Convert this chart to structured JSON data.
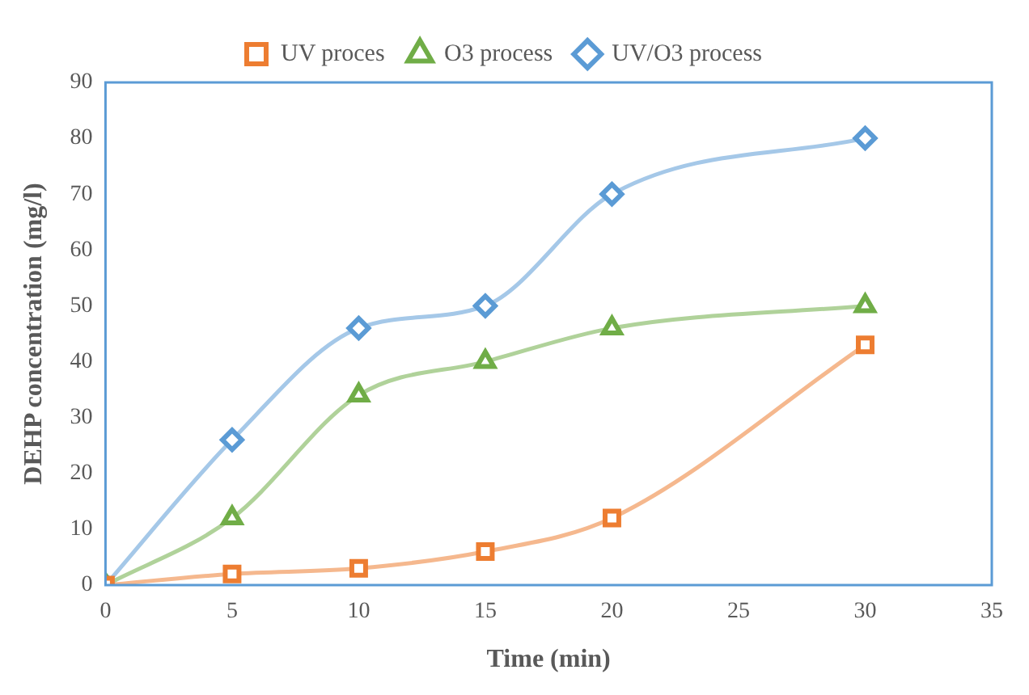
{
  "chart_data": {
    "type": "line",
    "xlabel": "Time (min)",
    "ylabel": "DEHP concentration (mg/l)",
    "x": [
      0,
      5,
      10,
      15,
      20,
      30
    ],
    "series": [
      {
        "name": "UV proces",
        "color": "#ed7d31",
        "marker": "square",
        "values": [
          0,
          2,
          3,
          6,
          12,
          43
        ]
      },
      {
        "name": "O3 process",
        "color": "#70ad47",
        "marker": "triangle",
        "values": [
          0,
          12,
          34,
          40,
          46,
          50
        ]
      },
      {
        "name": "UV/O3 process",
        "color": "#5b9bd5",
        "marker": "diamond",
        "values": [
          0,
          26,
          46,
          50,
          70,
          80
        ]
      }
    ],
    "xlim": [
      0,
      35
    ],
    "xticks": [
      0,
      5,
      10,
      15,
      20,
      25,
      30,
      35
    ],
    "ylim": [
      0,
      90
    ],
    "yticks": [
      0,
      10,
      20,
      30,
      40,
      50,
      60,
      70,
      80,
      90
    ],
    "grid": false,
    "legend": "top",
    "line_style": "solid"
  }
}
